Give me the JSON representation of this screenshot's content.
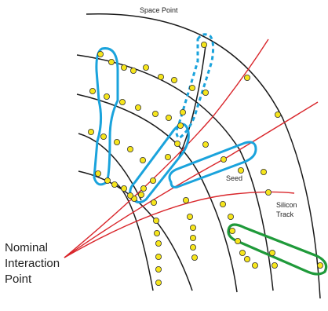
{
  "labels": {
    "space_point": "Space Point",
    "seed": "Seed",
    "silicon_track_line1": "Silicon",
    "silicon_track_line2": "Track",
    "nominal_line1": "Nominal",
    "nominal_line2": "Interaction",
    "nominal_line3": "Point"
  },
  "colors": {
    "layer": "#1a1a1a",
    "track": "#d9262b",
    "seed": "#1aa3dc",
    "silicon_track": "#1f9a3a",
    "space_point_fill": "#f6e51c",
    "space_point_stroke": "#333333"
  }
}
